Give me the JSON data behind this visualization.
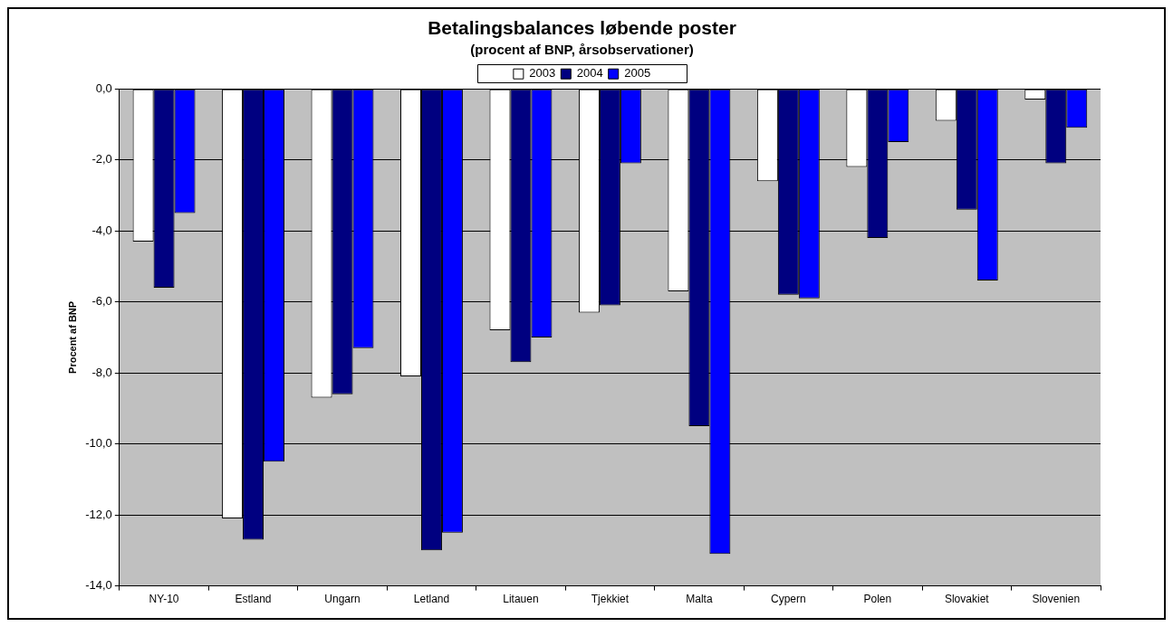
{
  "chart_data": {
    "type": "bar",
    "title": "Betalingsbalances løbende poster",
    "subtitle": "(procent af BNP, årsobservationer)",
    "ylabel": "Procent af BNP",
    "categories": [
      "NY-10",
      "Estland",
      "Ungarn",
      "Letland",
      "Litauen",
      "Tjekkiet",
      "Malta",
      "Cypern",
      "Polen",
      "Slovakiet",
      "Slovenien"
    ],
    "series": [
      {
        "name": "2003",
        "color": "#ffffff",
        "values": [
          -4.3,
          -12.1,
          -8.7,
          -8.1,
          -6.8,
          -6.3,
          -5.7,
          -2.6,
          -2.2,
          -0.9,
          -0.3
        ]
      },
      {
        "name": "2004",
        "color": "#000080",
        "values": [
          -5.6,
          -12.7,
          -8.6,
          -13.0,
          -7.7,
          -6.1,
          -9.5,
          -5.8,
          -4.2,
          -3.4,
          -2.1
        ]
      },
      {
        "name": "2005",
        "color": "#0000ff",
        "values": [
          -3.5,
          -10.5,
          -7.3,
          -12.5,
          -7.0,
          -2.1,
          -13.1,
          -5.9,
          -1.5,
          -5.4,
          -1.1
        ]
      }
    ],
    "ylim": [
      -14,
      0
    ],
    "yticks": [
      {
        "value": -14,
        "label": "-14,0"
      },
      {
        "value": -12,
        "label": "-12,0"
      },
      {
        "value": -10,
        "label": "-10,0"
      },
      {
        "value": -8,
        "label": "-8,0"
      },
      {
        "value": -6,
        "label": "-6,0"
      },
      {
        "value": -4,
        "label": "-4,0"
      },
      {
        "value": -2,
        "label": "-2,0"
      },
      {
        "value": 0,
        "label": "0,0"
      }
    ],
    "grid": "y",
    "legend": "top"
  }
}
